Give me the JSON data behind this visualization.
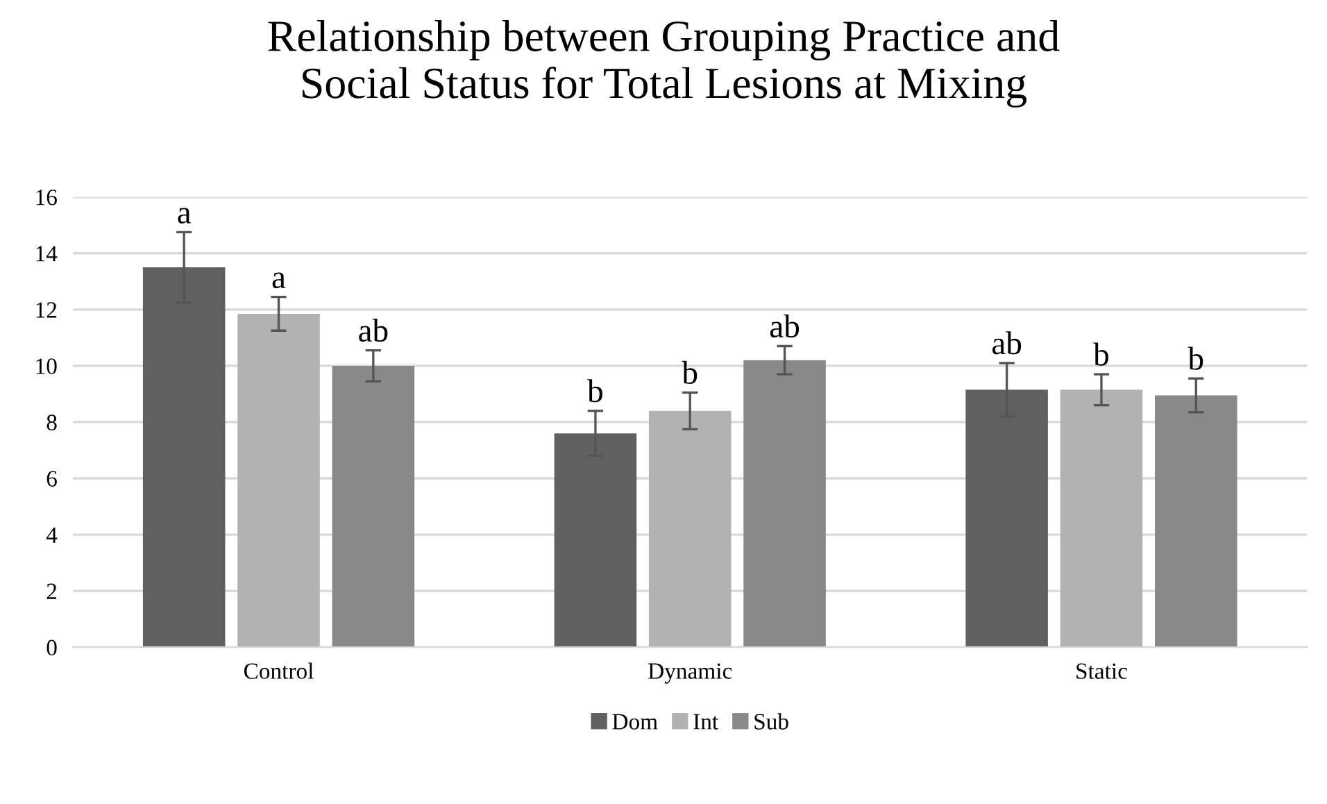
{
  "chart_data": {
    "type": "bar",
    "title": "Relationship between Grouping Practice and\nSocial Status for Total Lesions at Mixing",
    "categories": [
      "Control",
      "Dynamic",
      "Static"
    ],
    "series": [
      {
        "name": "Dom",
        "color": "#606060",
        "values": [
          13.5,
          7.6,
          9.15
        ],
        "errors": [
          1.25,
          0.8,
          0.95
        ],
        "value_labels": [
          "a",
          "b",
          "ab"
        ]
      },
      {
        "name": "Int",
        "color": "#b2b2b2",
        "values": [
          11.85,
          8.4,
          9.15
        ],
        "errors": [
          0.6,
          0.65,
          0.55
        ],
        "value_labels": [
          "a",
          "b",
          "b"
        ]
      },
      {
        "name": "Sub",
        "color": "#898989",
        "values": [
          10.0,
          10.2,
          8.95
        ],
        "errors": [
          0.55,
          0.5,
          0.6
        ],
        "value_labels": [
          "ab",
          "ab",
          "b"
        ]
      }
    ],
    "ylim": [
      0,
      16
    ],
    "yticks": [
      0,
      2,
      4,
      6,
      8,
      10,
      12,
      14,
      16
    ],
    "grid": "y",
    "legend": "bottom"
  }
}
